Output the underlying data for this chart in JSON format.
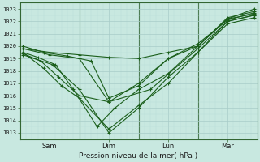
{
  "xlabel": "Pression niveau de la mer( hPa )",
  "bg_color": "#c8e8e0",
  "grid_major_color": "#a8ccc8",
  "grid_minor_color": "#b8dcd8",
  "line_color": "#1a5e1a",
  "ylim": [
    1012.5,
    1023.5
  ],
  "yticks": [
    1013,
    1014,
    1015,
    1016,
    1017,
    1018,
    1019,
    1020,
    1021,
    1022,
    1023
  ],
  "xlim": [
    0,
    4.0
  ],
  "xtick_positions": [
    0.5,
    1.5,
    2.5,
    3.5
  ],
  "xtick_labels": [
    "Sam",
    "Dim",
    "Lun",
    "Mar"
  ],
  "day_lines": [
    1.0,
    2.0,
    3.0
  ],
  "lines": [
    {
      "x": [
        0.05,
        0.55,
        1.0,
        1.5,
        2.0,
        2.5,
        3.0,
        3.5,
        3.95
      ],
      "y": [
        1019.3,
        1018.5,
        1016.5,
        1013.0,
        1015.0,
        1017.5,
        1019.5,
        1022.0,
        1022.5
      ]
    },
    {
      "x": [
        0.05,
        0.4,
        0.7,
        1.0,
        1.5,
        2.0,
        2.5,
        3.0,
        3.5,
        3.95
      ],
      "y": [
        1019.5,
        1018.2,
        1016.8,
        1015.8,
        1013.3,
        1015.2,
        1017.0,
        1019.5,
        1021.8,
        1022.3
      ]
    },
    {
      "x": [
        0.05,
        0.35,
        0.65,
        1.0,
        1.5,
        2.2,
        3.0,
        3.5,
        3.95
      ],
      "y": [
        1019.4,
        1018.8,
        1017.5,
        1016.0,
        1015.5,
        1016.5,
        1019.8,
        1022.0,
        1022.5
      ]
    },
    {
      "x": [
        0.05,
        0.5,
        1.0,
        1.5,
        2.0,
        2.5,
        3.0,
        3.5,
        3.95
      ],
      "y": [
        1019.8,
        1019.5,
        1019.3,
        1019.1,
        1019.0,
        1019.5,
        1020.0,
        1022.3,
        1022.8
      ]
    },
    {
      "x": [
        0.05,
        0.5,
        1.0,
        1.5,
        2.0,
        2.5,
        3.0,
        3.5,
        3.95
      ],
      "y": [
        1019.8,
        1019.3,
        1019.0,
        1015.5,
        1017.0,
        1019.0,
        1020.0,
        1022.2,
        1022.6
      ]
    },
    {
      "x": [
        0.05,
        0.4,
        0.8,
        1.2,
        1.5,
        2.0,
        2.5,
        3.0,
        3.5,
        3.95
      ],
      "y": [
        1020.0,
        1019.5,
        1019.2,
        1018.8,
        1015.8,
        1016.8,
        1019.0,
        1020.2,
        1022.1,
        1022.7
      ]
    },
    {
      "x": [
        0.05,
        0.3,
        0.6,
        0.9,
        1.3,
        1.6,
        2.0,
        2.5,
        3.0,
        3.5,
        3.95
      ],
      "y": [
        1019.5,
        1019.1,
        1018.5,
        1016.5,
        1013.5,
        1015.0,
        1016.5,
        1017.8,
        1020.0,
        1022.2,
        1023.0
      ]
    }
  ]
}
